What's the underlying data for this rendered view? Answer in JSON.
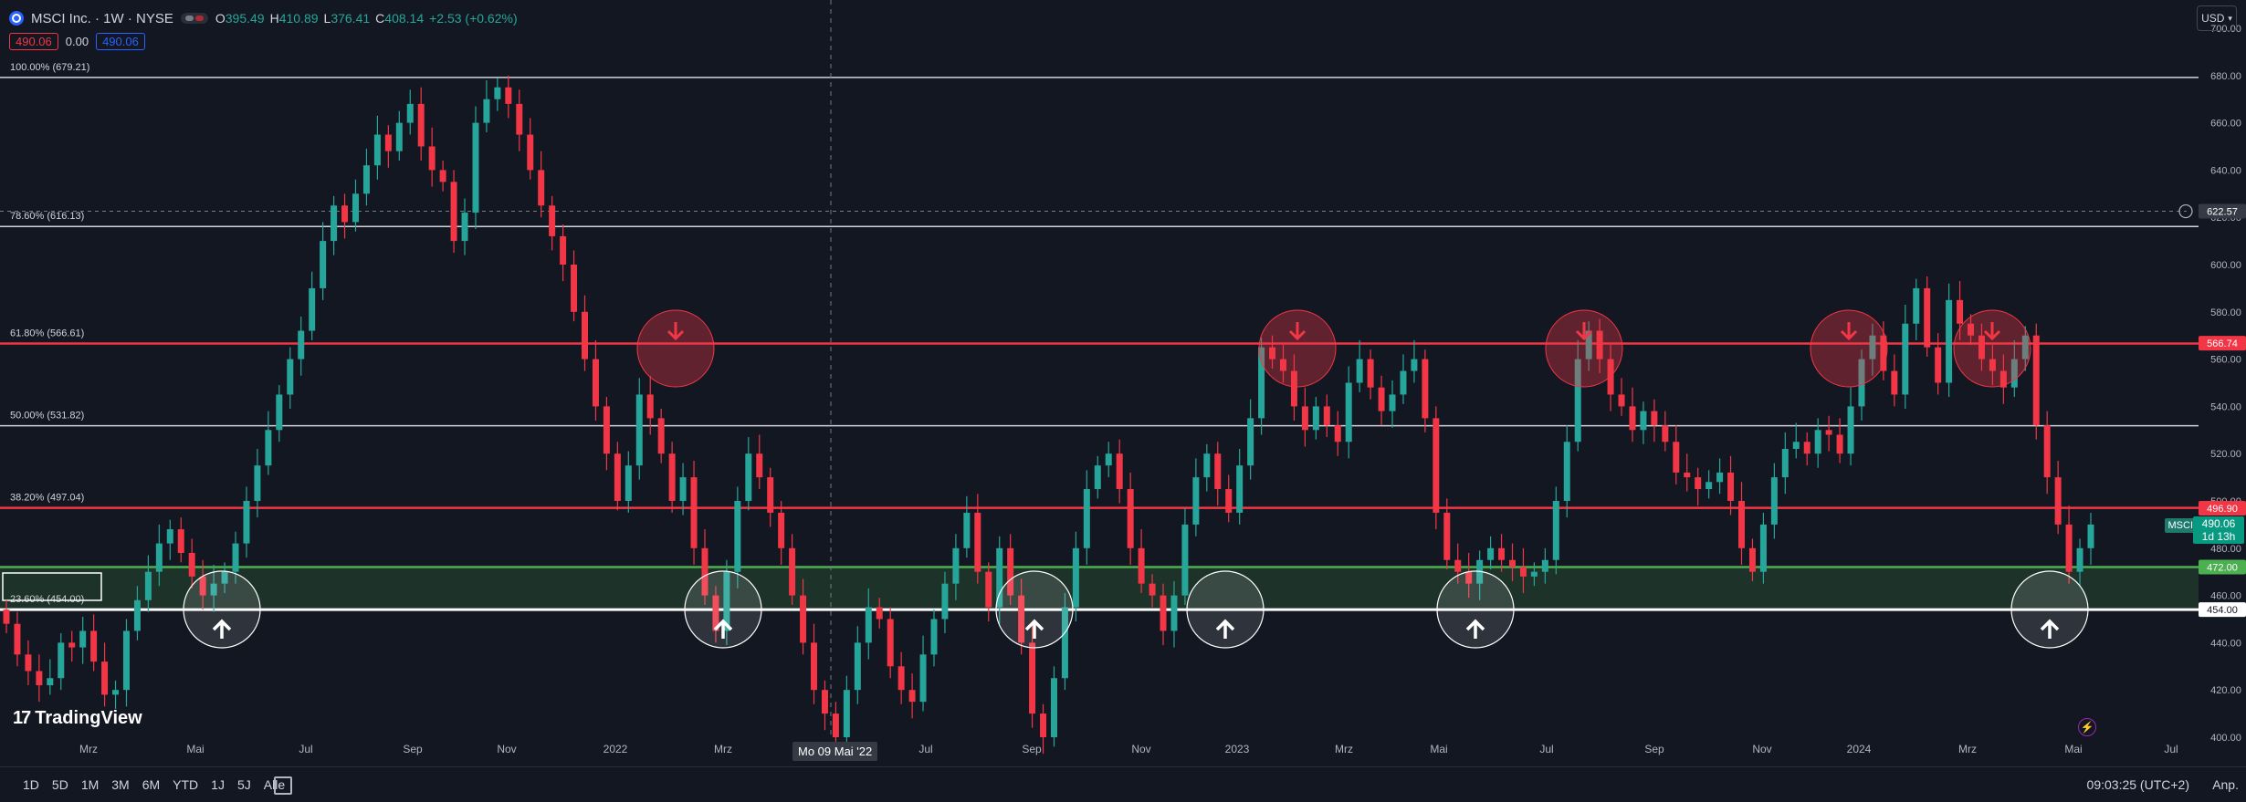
{
  "header": {
    "title": "MSCI Inc. · 1W · NYSE",
    "ohlc": {
      "o_label": "O",
      "o": "395.49",
      "h_label": "H",
      "h": "410.89",
      "l_label": "L",
      "l": "376.41",
      "c_label": "C",
      "c": "408.14",
      "change": "+2.53 (+0.62%)"
    },
    "bid": "490.06",
    "spread": "0.00",
    "ask": "490.06",
    "currency": "USD"
  },
  "fib_labels": [
    "100.00% (679.21)",
    "78.60% (616.13)",
    "61.80% (566.61)",
    "50.00% (531.82)",
    "38.20% (497.04)",
    "23.60% (454.00)"
  ],
  "axis_price_badges": [
    {
      "text": "622.57",
      "color": "#363a45"
    },
    {
      "text": "566.74",
      "color": "#f23645"
    },
    {
      "text": "496.90",
      "color": "#f23645"
    },
    {
      "text": "472.00",
      "color": "#4caf50"
    },
    {
      "text": "454.00",
      "color": "#ffffff"
    }
  ],
  "symbol_tag": "MSCI",
  "last_price": "490.06",
  "countdown": "1d 13h",
  "crosshair_date": "Mo 09 Mai '22",
  "timeframes": [
    "1D",
    "5D",
    "1M",
    "3M",
    "6M",
    "YTD",
    "1J",
    "5J",
    "Alle"
  ],
  "clock": "09:03:25 (UTC+2)",
  "adjust_label": "Anp.",
  "brand": "TradingView",
  "colors": {
    "up": "#26a69a",
    "down": "#f23645",
    "fib_red": "#f23645",
    "support_green": "#4caf50",
    "background": "#131722"
  },
  "chart_data": {
    "type": "candlestick",
    "ylim": [
      395,
      710
    ],
    "y_ticks": [
      400,
      420,
      440,
      460,
      480,
      500,
      520,
      540,
      560,
      580,
      600,
      620,
      640,
      660,
      680,
      700
    ],
    "x_ticks": [
      "Mrz",
      "Mai",
      "Jul",
      "Sep",
      "Nov",
      "2022",
      "Mrz",
      "Mai",
      "Jul",
      "Sep",
      "Nov",
      "2023",
      "Mrz",
      "Mai",
      "Jul",
      "Sep",
      "Nov",
      "2024",
      "Mrz",
      "Mai",
      "Jul"
    ],
    "fib_levels": [
      679.21,
      616.13,
      566.61,
      531.82,
      497.04,
      454.0
    ],
    "support_zone": [
      454.0,
      472.0
    ],
    "horizontal_line": 622.57,
    "closes": [
      448,
      435,
      428,
      422,
      425,
      440,
      438,
      445,
      432,
      418,
      420,
      445,
      458,
      470,
      482,
      488,
      478,
      468,
      460,
      465,
      470,
      482,
      500,
      515,
      530,
      545,
      560,
      572,
      590,
      610,
      625,
      618,
      630,
      642,
      655,
      648,
      660,
      668,
      650,
      640,
      635,
      610,
      622,
      660,
      670,
      675,
      668,
      655,
      640,
      625,
      612,
      600,
      580,
      560,
      540,
      520,
      500,
      515,
      545,
      535,
      520,
      500,
      510,
      480,
      460,
      445,
      470,
      500,
      520,
      510,
      495,
      480,
      460,
      440,
      420,
      410,
      400,
      420,
      440,
      455,
      450,
      430,
      420,
      415,
      435,
      450,
      465,
      480,
      495,
      470,
      455,
      480,
      460,
      440,
      410,
      400,
      425,
      455,
      480,
      505,
      515,
      520,
      505,
      480,
      465,
      460,
      445,
      460,
      490,
      510,
      520,
      505,
      495,
      515,
      535,
      565,
      560,
      555,
      540,
      530,
      540,
      532,
      525,
      550,
      560,
      548,
      538,
      545,
      555,
      560,
      535,
      495,
      475,
      470,
      465,
      475,
      480,
      475,
      472,
      468,
      470,
      475,
      500,
      525,
      560,
      572,
      560,
      545,
      540,
      530,
      538,
      532,
      525,
      512,
      510,
      505,
      508,
      512,
      500,
      480,
      470,
      490,
      510,
      522,
      525,
      520,
      530,
      528,
      520,
      540,
      560,
      570,
      555,
      545,
      575,
      590,
      565,
      550,
      585,
      575,
      570,
      560,
      555,
      548,
      560,
      570,
      532,
      510,
      490,
      470,
      480,
      490
    ]
  }
}
